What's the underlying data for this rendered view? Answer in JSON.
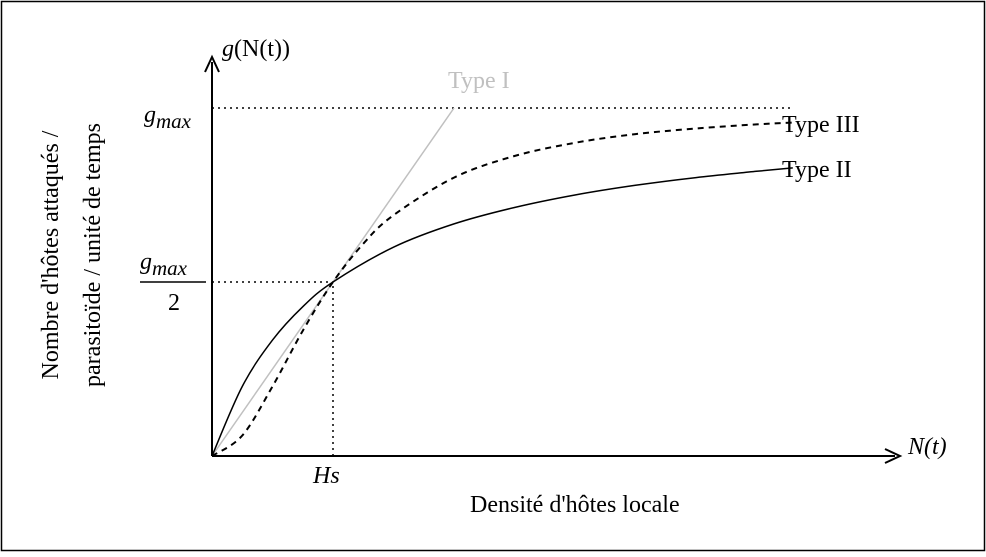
{
  "chart_data": {
    "type": "line",
    "title": "",
    "xlabel": "Densité d'hôtes locale",
    "ylabel_line1": "Nombre d'hôtes attaqués /",
    "ylabel_line2": "parasitoïde / unité de temps",
    "x_axis_symbol": "N(t)",
    "y_axis_symbol_prefix": "g",
    "y_axis_symbol_paren": "(N(t))",
    "ticks": {
      "x_hs": "Hs",
      "y_gmax_g": "g",
      "y_gmax_sub": "max",
      "y_half_denominator": "2"
    },
    "xlim": [
      0,
      4.8
    ],
    "ylim": [
      0,
      1.1
    ],
    "hs": 1.0,
    "gmax": 1.0,
    "grid": false,
    "series": [
      {
        "name": "Type I",
        "style": "solid",
        "color": "#c0c0c0",
        "x": [
          0,
          2.0
        ],
        "y": [
          0,
          1.0
        ]
      },
      {
        "name": "Type II",
        "style": "solid",
        "color": "#000000",
        "x": [
          0,
          0.25,
          0.5,
          0.75,
          1.0,
          1.5,
          2.0,
          2.5,
          3.0,
          3.5,
          4.0,
          4.5,
          4.8
        ],
        "y": [
          0,
          0.2,
          0.333,
          0.429,
          0.5,
          0.6,
          0.667,
          0.714,
          0.75,
          0.778,
          0.8,
          0.818,
          0.828
        ]
      },
      {
        "name": "Type III",
        "style": "dashed",
        "color": "#000000",
        "x": [
          0,
          0.25,
          0.5,
          0.75,
          1.0,
          1.25,
          1.5,
          2.0,
          2.5,
          3.0,
          3.5,
          4.0,
          4.5,
          4.8
        ],
        "y": [
          0,
          0.059,
          0.2,
          0.36,
          0.5,
          0.61,
          0.692,
          0.8,
          0.862,
          0.9,
          0.925,
          0.941,
          0.953,
          0.958
        ]
      }
    ],
    "reference_lines": [
      {
        "kind": "horizontal",
        "y": 1.0,
        "from_x": 0,
        "to_x": 4.8,
        "style": "dotted"
      },
      {
        "kind": "horizontal",
        "y": 0.5,
        "from_x": 0,
        "to_x": 1.0,
        "style": "dotted"
      },
      {
        "kind": "vertical",
        "x": 1.0,
        "from_y": 0,
        "to_y": 0.5,
        "style": "dotted"
      }
    ]
  }
}
